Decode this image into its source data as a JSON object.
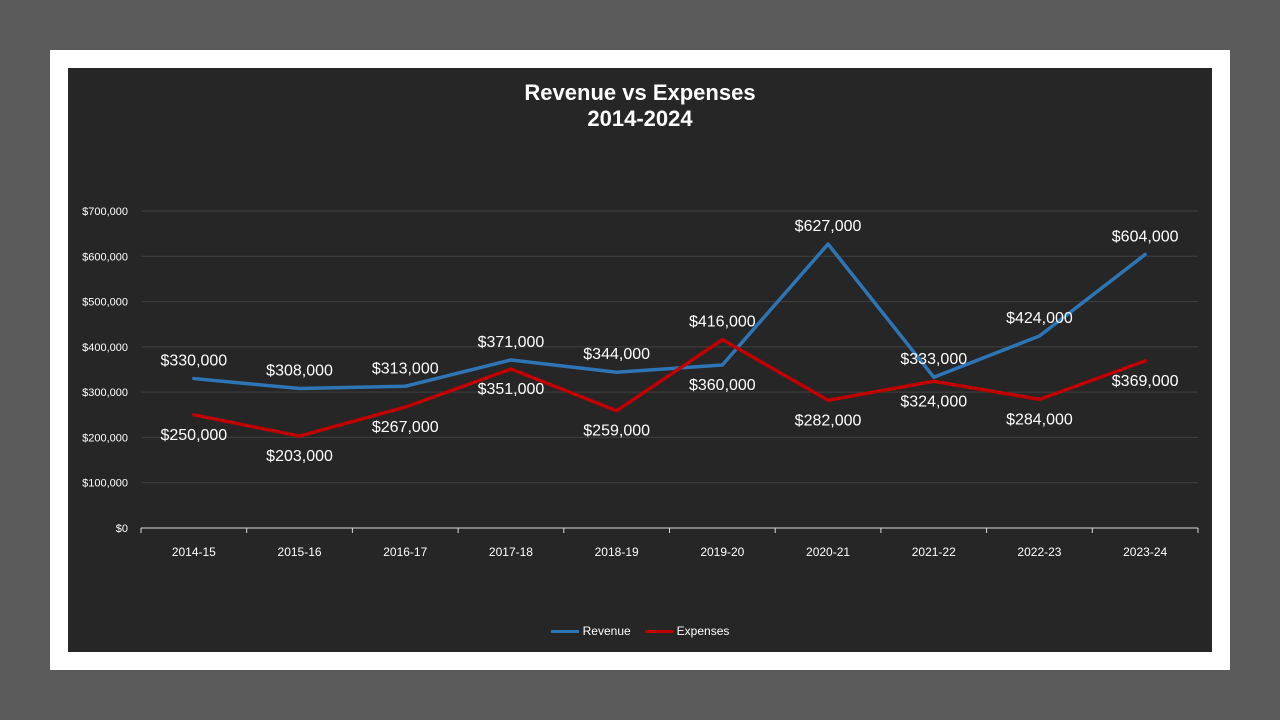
{
  "chart_data": {
    "type": "line",
    "title": "Revenue vs Expenses",
    "subtitle": "2014-2024",
    "xlabel": "",
    "ylabel": "",
    "categories": [
      "2014-15",
      "2015-16",
      "2016-17",
      "2017-18",
      "2018-19",
      "2019-20",
      "2020-21",
      "2021-22",
      "2022-23",
      "2023-24"
    ],
    "ylim": [
      0,
      700000
    ],
    "yticks": [
      0,
      100000,
      200000,
      300000,
      400000,
      500000,
      600000,
      700000
    ],
    "ytick_labels": [
      "$0",
      "$100,000",
      "$200,000",
      "$300,000",
      "$400,000",
      "$500,000",
      "$600,000",
      "$700,000"
    ],
    "grid": true,
    "legend_position": "bottom",
    "series": [
      {
        "name": "Revenue",
        "color": "#2e75b6",
        "values": [
          330000,
          308000,
          313000,
          371000,
          344000,
          360000,
          627000,
          333000,
          424000,
          604000
        ],
        "labels": [
          "$330,000",
          "$308,000",
          "$313,000",
          "$371,000",
          "$344,000",
          "$360,000",
          "$627,000",
          "$333,000",
          "$424,000",
          "$604,000"
        ],
        "label_side": [
          "above",
          "above",
          "above",
          "above",
          "above",
          "below",
          "above",
          "above",
          "above",
          "above"
        ]
      },
      {
        "name": "Expenses",
        "color": "#c00000",
        "values": [
          250000,
          203000,
          267000,
          351000,
          259000,
          416000,
          282000,
          324000,
          284000,
          369000
        ],
        "labels": [
          "$250,000",
          "$203,000",
          "$267,000",
          "$351,000",
          "$259,000",
          "$416,000",
          "$282,000",
          "$324,000",
          "$284,000",
          "$369,000"
        ],
        "label_side": [
          "below",
          "below",
          "below",
          "below",
          "below",
          "above",
          "below",
          "below",
          "below",
          "below"
        ]
      }
    ]
  },
  "colors": {
    "background": "#262626",
    "gridline": "#404040",
    "axis": "#d9d9d9",
    "text": "#ffffff"
  }
}
